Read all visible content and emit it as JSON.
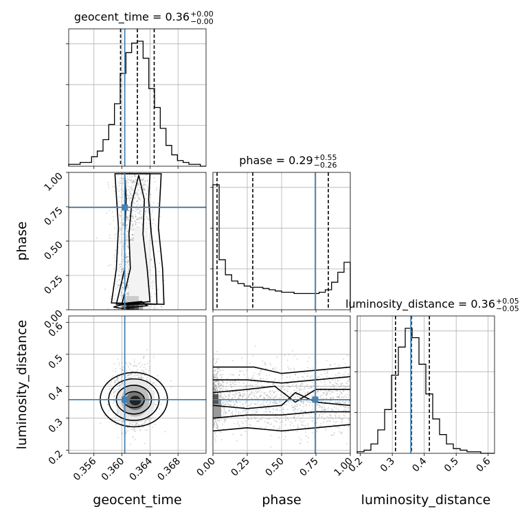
{
  "chart_data": {
    "type": "corner",
    "truth_color": "#4682b4",
    "hist_color": "#000000",
    "density_color": "#000000",
    "grid": true,
    "parameters": [
      {
        "name": "geocent_time",
        "xlabel": "geocent_time",
        "range": [
          0.3524,
          0.372
        ],
        "ticks": [
          0.356,
          0.36,
          0.364,
          0.368
        ],
        "tick_labels": [
          "0.356",
          "0.360",
          "0.364",
          "0.368"
        ],
        "truth": 0.3604,
        "quantiles": [
          0.3598,
          0.3622,
          0.3646
        ],
        "title_name": "geocent_time",
        "title_value": "0.36",
        "title_plus": "+0.00",
        "title_minus": "−0.00",
        "hist": [
          1,
          1,
          2,
          2,
          5,
          8,
          14,
          22,
          33,
          49,
          60,
          65,
          66,
          57,
          41,
          31,
          20,
          11,
          6,
          3,
          2,
          1,
          1,
          0
        ]
      },
      {
        "name": "phase",
        "xlabel": "phase",
        "ylabel": "phase",
        "range": [
          0.0,
          1.0
        ],
        "ticks": [
          0.0,
          0.25,
          0.5,
          0.75,
          1.0
        ],
        "tick_labels": [
          "0.00",
          "0.25",
          "0.50",
          "0.75",
          "1.00"
        ],
        "truth": 0.745,
        "quantiles": [
          0.03,
          0.29,
          0.84
        ],
        "title_name": "phase",
        "title_value": "0.29",
        "title_plus": "+0.55",
        "title_minus": "−0.26",
        "hist": [
          100,
          40,
          28,
          23,
          21,
          19,
          18,
          18,
          17,
          16,
          15,
          14,
          14,
          13,
          13,
          13,
          13,
          14,
          16,
          22,
          30,
          38
        ]
      },
      {
        "name": "luminosity_distance",
        "xlabel": "luminosity_distance",
        "ylabel": "luminosity_distance",
        "range": [
          0.19,
          0.62
        ],
        "ticks": [
          0.2,
          0.3,
          0.4,
          0.5,
          0.6
        ],
        "tick_labels": [
          "0.2",
          "0.3",
          "0.4",
          "0.5",
          "0.6"
        ],
        "truth": 0.358,
        "quantiles": [
          0.31,
          0.36,
          0.416
        ],
        "title_name": "luminosity_distance",
        "title_value": "0.36",
        "title_plus": "+0.05",
        "title_minus": "−0.05",
        "hist": [
          1,
          2,
          6,
          15,
          28,
          50,
          68,
          80,
          74,
          57,
          38,
          22,
          12,
          6,
          3,
          2,
          1,
          1,
          0,
          0
        ]
      }
    ]
  }
}
